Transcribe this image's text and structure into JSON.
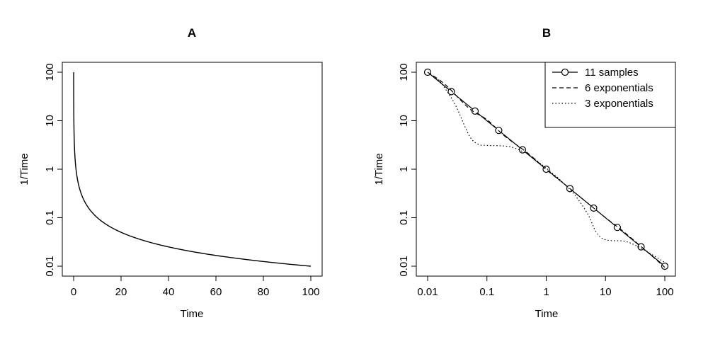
{
  "chart_data": [
    {
      "type": "line",
      "title": "A",
      "xlabel": "Time",
      "ylabel": "1/Time",
      "y_scale": "log",
      "xlim": [
        0,
        100
      ],
      "ylim": [
        0.01,
        100
      ],
      "x_ticks": [
        "0",
        "20",
        "40",
        "60",
        "80",
        "100"
      ],
      "y_ticks": [
        "0.01",
        "0.1",
        "1",
        "10",
        "100"
      ],
      "series": [
        {
          "function": "y = 1/x",
          "x": [
            0.01,
            0.02,
            0.05,
            0.1,
            0.2,
            0.5,
            1,
            2,
            5,
            10,
            20,
            40,
            60,
            80,
            100
          ],
          "values": [
            100,
            50,
            20,
            10,
            5,
            2,
            1,
            0.5,
            0.2,
            0.1,
            0.05,
            0.025,
            0.0167,
            0.0125,
            0.01
          ]
        }
      ]
    },
    {
      "type": "line",
      "title": "B",
      "xlabel": "Time",
      "ylabel": "1/Time",
      "x_scale": "log",
      "y_scale": "log",
      "xlim": [
        0.01,
        100
      ],
      "ylim": [
        0.01,
        100
      ],
      "x_ticks": [
        "0.01",
        "0.1",
        "1",
        "10",
        "100"
      ],
      "y_ticks": [
        "0.01",
        "0.1",
        "1",
        "10",
        "100"
      ],
      "legend": "top-right",
      "series": [
        {
          "name": "11 samples",
          "style": "solid with circles",
          "x": [
            0.01,
            0.0251,
            0.0631,
            0.158,
            0.398,
            1,
            2.51,
            6.31,
            15.8,
            39.8,
            100
          ],
          "values": [
            100,
            39.8,
            15.8,
            6.31,
            2.51,
            1,
            0.398,
            0.158,
            0.0631,
            0.0251,
            0.01
          ]
        },
        {
          "name": "6 exponentials",
          "style": "dashed",
          "x": [
            0.01,
            0.02,
            0.05,
            0.1,
            0.2,
            0.5,
            1,
            2,
            5,
            10,
            20,
            50,
            100
          ],
          "values": [
            100,
            55,
            18,
            10.5,
            4.8,
            2.1,
            0.98,
            0.5,
            0.2,
            0.1,
            0.052,
            0.02,
            0.0095
          ]
        },
        {
          "name": "3 exponentials",
          "style": "dotted",
          "x": [
            0.01,
            0.015,
            0.02,
            0.03,
            0.05,
            0.07,
            0.1,
            0.2,
            0.3,
            0.5,
            0.7,
            1,
            1.5,
            2,
            3,
            5,
            7,
            10,
            20,
            30,
            50,
            100
          ],
          "values": [
            100,
            70,
            45,
            20,
            5,
            3.3,
            3.1,
            3,
            2.7,
            2,
            1.5,
            1.05,
            0.7,
            0.5,
            0.3,
            0.12,
            0.05,
            0.035,
            0.033,
            0.028,
            0.02,
            0.012
          ]
        }
      ]
    }
  ]
}
